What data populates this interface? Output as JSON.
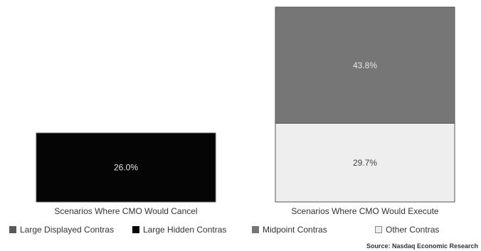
{
  "chart_data": {
    "type": "bar",
    "stacked": true,
    "categories": [
      "Scenarios Where CMO Would Cancel",
      "Scenarios Where CMO Would Execute"
    ],
    "series": [
      {
        "name": "Large Displayed Contras",
        "color": "#595959",
        "values": [
          0,
          0
        ]
      },
      {
        "name": "Large Hidden Contras",
        "color": "#050505",
        "values": [
          26.0,
          0
        ]
      },
      {
        "name": "Midpoint Contras",
        "color": "#767676",
        "values": [
          0,
          43.8
        ]
      },
      {
        "name": "Other Contras",
        "color": "#eeeeee",
        "values": [
          0,
          29.7
        ]
      }
    ],
    "segment_labels": [
      {
        "category": 0,
        "series": 1,
        "text": "26.0%"
      },
      {
        "category": 1,
        "series": 3,
        "text": "29.7%"
      },
      {
        "category": 1,
        "series": 2,
        "text": "43.8%"
      }
    ],
    "ylim": [
      0,
      73.5
    ],
    "grid": false,
    "legend_position": "bottom",
    "source": "Source: Nasdaq Economic Research"
  }
}
